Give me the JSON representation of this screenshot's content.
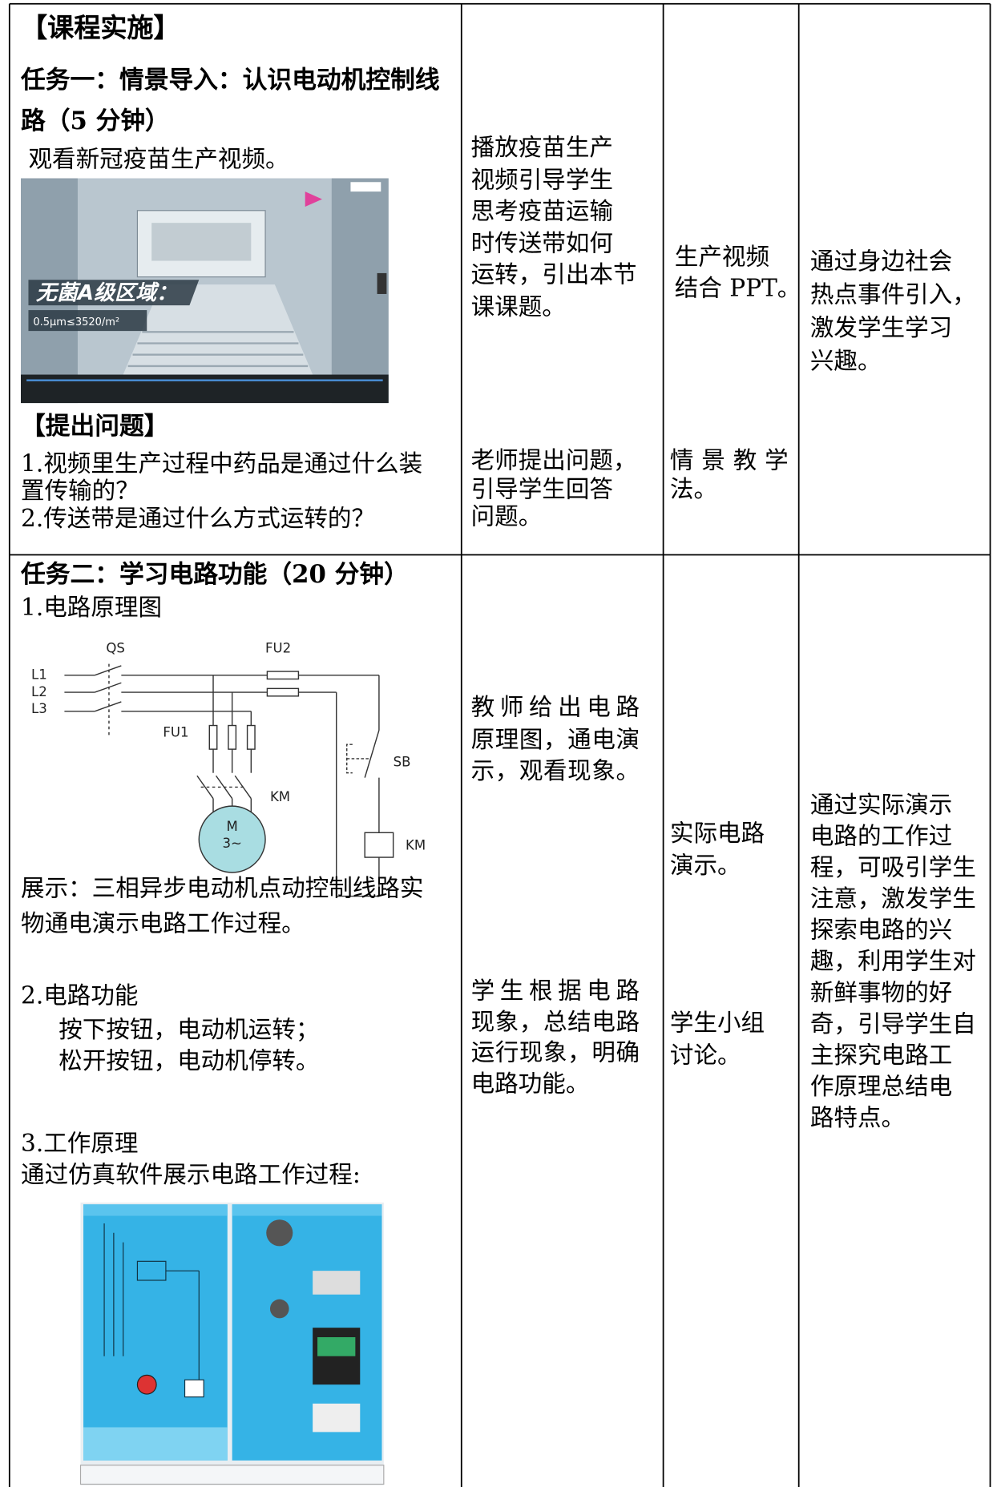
{
  "heading": "【课程实施】",
  "rows": [
    {
      "task_title": [
        "任务一：情景导入：认识电动机控制线",
        "路（5 分钟）"
      ],
      "intro": "观看新冠疫苗生产视频。",
      "video_caption": [
        "无菌A级区域：",
        "0.5μm≤3520/m²"
      ],
      "question_heading": "【提出问题】",
      "questions": [
        "1.视频里生产过程中药品是通过什么装",
        "置传输的？",
        "2.传送带是通过什么方式运转的？"
      ],
      "teacher": [
        [
          "播放疫苗生产",
          "视频引导学生",
          "思考疫苗运输",
          "时传送带如何",
          "运转，引出本节",
          "课课题。"
        ],
        [
          "老师提出问题，",
          "引导学生回答",
          "问题。"
        ]
      ],
      "student": [
        [
          "生产视频",
          "结合 PPT。"
        ],
        [
          "情景教学",
          "法。"
        ]
      ],
      "intent": [
        "通过身边社会",
        "热点事件引入，",
        "激发学生学习",
        "兴趣。"
      ]
    },
    {
      "task_title": [
        "任务二：学习电路功能（20 分钟）"
      ],
      "diagram_heading": "1.电路原理图",
      "circuit_labels": [
        "QS",
        "FU2",
        "L1",
        "L2",
        "L3",
        "FU1",
        "SB",
        "KM",
        "KM",
        "M",
        "3~"
      ],
      "demo": [
        "展示：三相异步电动机点动控制线路实",
        "物通电演示电路工作过程。"
      ],
      "function_heading": "2.电路功能",
      "function": [
        "按下按钮，电动机运转；",
        "松开按钮，电动机停转。"
      ],
      "principle_heading": "3.工作原理",
      "principle": "通过仿真软件展示电路工作过程:",
      "teacher": [
        [
          "教师给出电路",
          "原理图，通电演",
          "示，观看现象。"
        ],
        [
          "学生根据电路",
          "现象，总结电路",
          "运行现象，明确",
          "电路功能。"
        ]
      ],
      "student": [
        [
          "实际电路",
          "演示。"
        ],
        [
          "学生小组",
          "讨论。"
        ]
      ],
      "intent": [
        "通过实际演示",
        "电路的工作过",
        "程，可吸引学生",
        "注意，激发学生",
        "探索电路的兴",
        "趣，利用学生对",
        "新鲜事物的好",
        "奇，引导学生自",
        "主探究电路工",
        "作原理总结电",
        "路特点。"
      ]
    }
  ]
}
